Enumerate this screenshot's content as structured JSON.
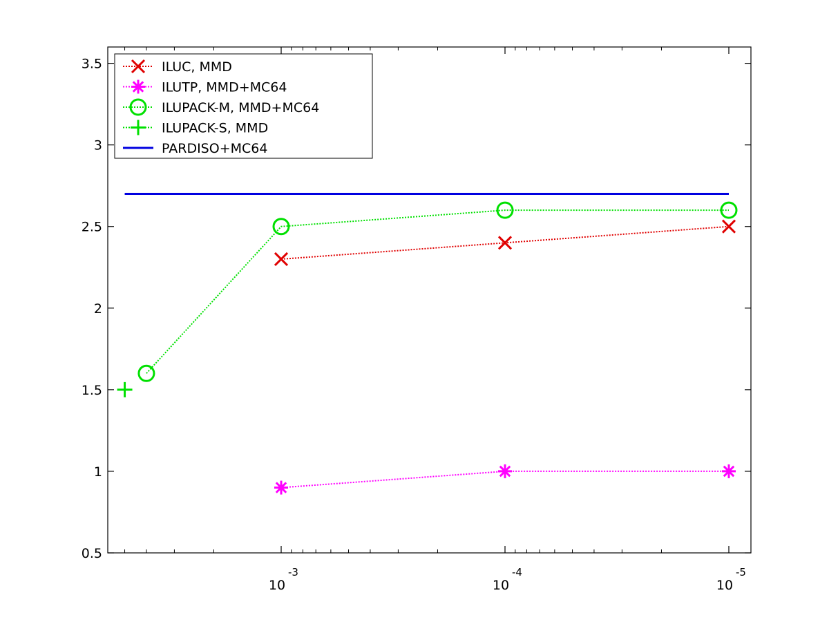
{
  "chart_data": {
    "type": "line",
    "title": "",
    "xlabel": "",
    "ylabel": "",
    "x_scale": "log-reversed",
    "xlim": [
      0.01,
      8.7e-06
    ],
    "ylim": [
      0.5,
      3.6
    ],
    "x_ticks": [
      {
        "value": 0.001,
        "base": "10",
        "exponent": "-3"
      },
      {
        "value": 0.0001,
        "base": "10",
        "exponent": "-4"
      },
      {
        "value": 1e-05,
        "base": "10",
        "exponent": "-5"
      }
    ],
    "y_ticks": [
      "0.5",
      "1",
      "1.5",
      "2",
      "2.5",
      "3",
      "3.5"
    ],
    "legend_position": "top-left",
    "grid": false,
    "series": [
      {
        "name": "ILUC, MMD",
        "color": "#e00000",
        "marker": "x",
        "line": "dotted",
        "x": [
          0.001,
          0.0001,
          1e-05
        ],
        "y": [
          2.3,
          2.4,
          2.5
        ]
      },
      {
        "name": "ILUTP, MMD+MC64",
        "color": "#ff00ff",
        "marker": "asterisk",
        "line": "dotted",
        "x": [
          0.001,
          0.0001,
          1e-05
        ],
        "y": [
          0.9,
          1.0,
          1.0
        ]
      },
      {
        "name": "ILUPACK-M, MMD+MC64",
        "color": "#00e000",
        "marker": "circle",
        "line": "dotted",
        "x": [
          0.004,
          0.001,
          0.0001,
          1e-05
        ],
        "y": [
          1.6,
          2.5,
          2.6,
          2.6
        ]
      },
      {
        "name": "ILUPACK-S, MMD",
        "color": "#00e000",
        "marker": "plus",
        "line": "dotted",
        "x": [
          0.005
        ],
        "y": [
          1.5
        ]
      },
      {
        "name": "PARDISO+MC64",
        "color": "#0000e0",
        "marker": "none",
        "line": "solid",
        "x": [
          0.005,
          1e-05
        ],
        "y": [
          2.7,
          2.7
        ]
      }
    ]
  }
}
